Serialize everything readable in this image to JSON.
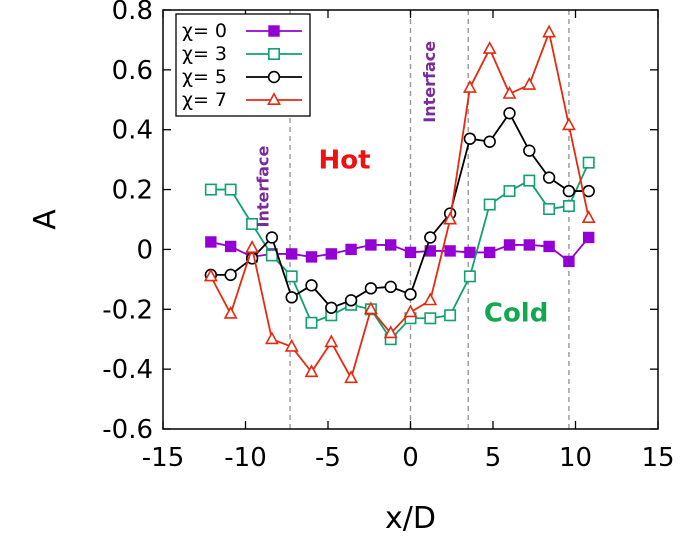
{
  "chart_data": {
    "type": "line",
    "xlabel": "x/D",
    "ylabel": "A",
    "xlim": [
      -15,
      15
    ],
    "ylim": [
      -0.6,
      0.8
    ],
    "xticks": [
      -15,
      -10,
      -5,
      0,
      5,
      10,
      15
    ],
    "yticks": [
      -0.6,
      -0.4,
      -0.2,
      0,
      0.2,
      0.4,
      0.6,
      0.8
    ],
    "xtick_labels": [
      "-15",
      "-10",
      "-5",
      "0",
      "5",
      "10",
      "15"
    ],
    "ytick_labels": [
      "-0.6",
      "-0.4",
      "-0.2",
      "0",
      "0.2",
      "0.4",
      "0.6",
      "0.8"
    ],
    "grid": false,
    "legend_position": "top-left",
    "interface_lines": [
      -7.3,
      0,
      3.5,
      9.6
    ],
    "annotations": [
      {
        "text": "Hot",
        "x": -4.0,
        "y": 0.27,
        "color": "#ee1111",
        "kind": "big"
      },
      {
        "text": "Cold",
        "x": 6.4,
        "y": -0.24,
        "color": "#11a850",
        "kind": "big"
      },
      {
        "text": "Interface",
        "x": -8.6,
        "y": 0.21,
        "color": "#7a2a9a",
        "kind": "iface"
      },
      {
        "text": "Interface",
        "x": 1.5,
        "y": 0.56,
        "color": "#7a2a9a",
        "kind": "iface"
      }
    ],
    "series": [
      {
        "name": "χ= 0",
        "color": "#9400d3",
        "marker": "filled-square",
        "x": [
          -12.1,
          -10.9,
          -9.6,
          -8.4,
          -7.2,
          -6.0,
          -4.8,
          -3.6,
          -2.4,
          -1.2,
          0.0,
          1.2,
          2.4,
          3.6,
          4.8,
          6.0,
          7.2,
          8.4,
          9.6,
          10.8
        ],
        "y": [
          0.025,
          0.01,
          -0.025,
          -0.015,
          -0.015,
          -0.025,
          -0.015,
          0.0,
          0.015,
          0.015,
          -0.01,
          -0.005,
          -0.005,
          -0.01,
          -0.01,
          0.015,
          0.015,
          0.01,
          -0.04,
          0.04
        ]
      },
      {
        "name": "χ= 3",
        "color": "#11a070",
        "marker": "open-square",
        "x": [
          -12.1,
          -10.9,
          -9.6,
          -8.4,
          -7.2,
          -6.0,
          -4.8,
          -3.6,
          -2.4,
          -1.2,
          0.0,
          1.2,
          2.4,
          3.6,
          4.8,
          6.0,
          7.2,
          8.4,
          9.6,
          10.8
        ],
        "y": [
          0.2,
          0.2,
          0.085,
          -0.02,
          -0.09,
          -0.245,
          -0.22,
          -0.185,
          -0.2,
          -0.3,
          -0.23,
          -0.23,
          -0.22,
          -0.09,
          0.15,
          0.195,
          0.23,
          0.135,
          0.145,
          0.29
        ]
      },
      {
        "name": "χ= 5",
        "color": "#000000",
        "marker": "open-circle",
        "x": [
          -12.1,
          -10.9,
          -9.6,
          -8.4,
          -7.2,
          -6.0,
          -4.8,
          -3.6,
          -2.4,
          -1.2,
          0.0,
          1.2,
          2.4,
          3.6,
          4.8,
          6.0,
          7.2,
          8.4,
          9.6,
          10.8
        ],
        "y": [
          -0.085,
          -0.085,
          -0.03,
          0.04,
          -0.16,
          -0.12,
          -0.195,
          -0.17,
          -0.13,
          -0.125,
          -0.15,
          0.04,
          0.12,
          0.37,
          0.36,
          0.455,
          0.33,
          0.24,
          0.195,
          0.195
        ]
      },
      {
        "name": "χ= 7",
        "color": "#e52a10",
        "marker": "open-triangle",
        "x": [
          -12.1,
          -10.9,
          -9.6,
          -8.4,
          -7.2,
          -6.0,
          -4.8,
          -3.6,
          -2.4,
          -1.2,
          0.0,
          1.2,
          2.4,
          3.6,
          4.8,
          6.0,
          7.2,
          8.4,
          9.6,
          10.8
        ],
        "y": [
          -0.09,
          -0.215,
          0.005,
          -0.3,
          -0.325,
          -0.41,
          -0.31,
          -0.43,
          -0.2,
          -0.28,
          -0.21,
          -0.17,
          0.1,
          0.54,
          0.67,
          0.52,
          0.55,
          0.725,
          0.415,
          0.105
        ]
      }
    ]
  }
}
